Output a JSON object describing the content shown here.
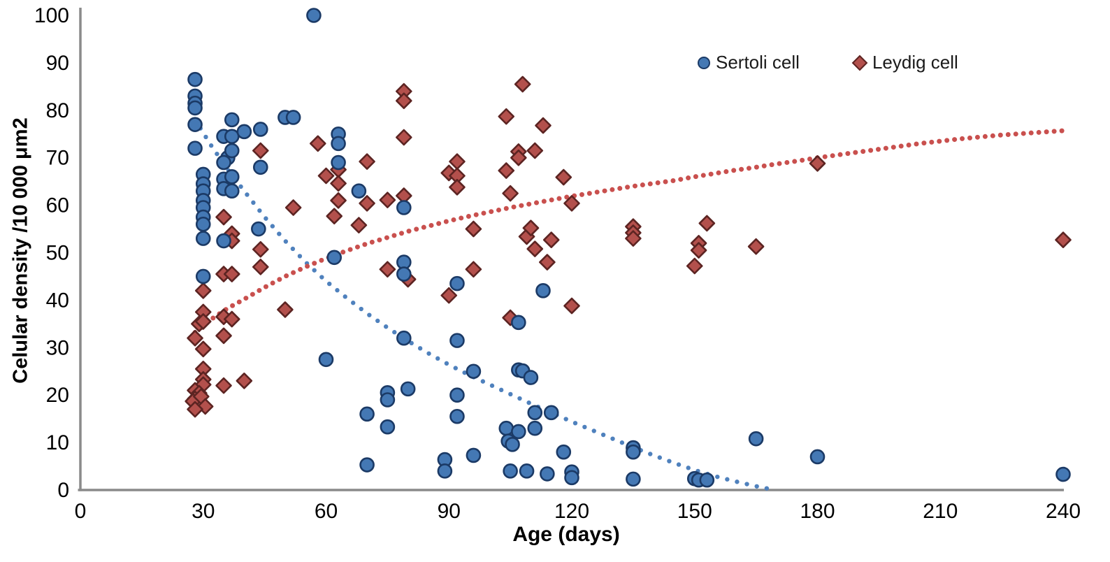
{
  "chart_data": {
    "type": "scatter",
    "title": "",
    "xlabel": "Age (days)",
    "ylabel": "Celular density /10 000 μm2",
    "xlim": [
      0,
      240
    ],
    "ylim": [
      0,
      100
    ],
    "x_ticks": [
      0,
      30,
      60,
      90,
      120,
      150,
      180,
      210,
      240
    ],
    "y_ticks": [
      0,
      10,
      20,
      30,
      40,
      50,
      60,
      70,
      80,
      90,
      100
    ],
    "grid": false,
    "legend_position": "top-right",
    "axis_color": "#8a8a8a",
    "tick_font_color": "#000000",
    "series": [
      {
        "name": "Sertoli cell",
        "marker": "circle",
        "fill": "#4478b4",
        "stroke": "#1b3a66",
        "points": [
          [
            28,
            86.5
          ],
          [
            28,
            83
          ],
          [
            28,
            81.5
          ],
          [
            28,
            80.5
          ],
          [
            28,
            77
          ],
          [
            28,
            72
          ],
          [
            30,
            66.5
          ],
          [
            30,
            64.5
          ],
          [
            30,
            63
          ],
          [
            30,
            61
          ],
          [
            30,
            59.5
          ],
          [
            30,
            57.5
          ],
          [
            30,
            56
          ],
          [
            30,
            53
          ],
          [
            30,
            45
          ],
          [
            35,
            74.5
          ],
          [
            37,
            74.5
          ],
          [
            37,
            78
          ],
          [
            40,
            75.5
          ],
          [
            44,
            76
          ],
          [
            36,
            70
          ],
          [
            35,
            69
          ],
          [
            37,
            71.5
          ],
          [
            35,
            65.5
          ],
          [
            37,
            66
          ],
          [
            35,
            63.5
          ],
          [
            37,
            63
          ],
          [
            44,
            68
          ],
          [
            35,
            52.5
          ],
          [
            43.5,
            55
          ],
          [
            50,
            78.5
          ],
          [
            52,
            78.5
          ],
          [
            57,
            100
          ],
          [
            62,
            49
          ],
          [
            63,
            75
          ],
          [
            63,
            73
          ],
          [
            63,
            69
          ],
          [
            60,
            27.5
          ],
          [
            68,
            63
          ],
          [
            70,
            16
          ],
          [
            70,
            5.3
          ],
          [
            75,
            20.5
          ],
          [
            75,
            19
          ],
          [
            75,
            13.3
          ],
          [
            79,
            59.5
          ],
          [
            79,
            48
          ],
          [
            79,
            45.5
          ],
          [
            79,
            32
          ],
          [
            80,
            21.3
          ],
          [
            92,
            43.5
          ],
          [
            92,
            31.5
          ],
          [
            92,
            20
          ],
          [
            92,
            15.5
          ],
          [
            89,
            6.4
          ],
          [
            89,
            4
          ],
          [
            96,
            25
          ],
          [
            96,
            7.3
          ],
          [
            104,
            13
          ],
          [
            107,
            12.3
          ],
          [
            111,
            13
          ],
          [
            104.5,
            10.3
          ],
          [
            105.5,
            9.6
          ],
          [
            107,
            25.3
          ],
          [
            108,
            25.1
          ],
          [
            110,
            23.7
          ],
          [
            107,
            35.3
          ],
          [
            113,
            42
          ],
          [
            111,
            16.3
          ],
          [
            115,
            16.3
          ],
          [
            105,
            4
          ],
          [
            109,
            4
          ],
          [
            114,
            3.4
          ],
          [
            118,
            8
          ],
          [
            120,
            3.8
          ],
          [
            120,
            2.6
          ],
          [
            135,
            8.9
          ],
          [
            135,
            8
          ],
          [
            135,
            2.3
          ],
          [
            150,
            2.4
          ],
          [
            151,
            2.1
          ],
          [
            153,
            2.1
          ],
          [
            165,
            10.8
          ],
          [
            180,
            7
          ],
          [
            240,
            3.3
          ]
        ]
      },
      {
        "name": "Leydig cell",
        "marker": "diamond",
        "fill": "#b3504c",
        "stroke": "#5c2422",
        "points": [
          [
            28,
            32
          ],
          [
            29,
            35
          ],
          [
            30,
            37.5
          ],
          [
            30,
            35.5
          ],
          [
            30,
            42
          ],
          [
            30,
            29.7
          ],
          [
            30,
            25.5
          ],
          [
            30,
            23.3
          ],
          [
            30,
            22.2
          ],
          [
            28,
            21
          ],
          [
            29,
            20.4
          ],
          [
            28,
            19.2
          ],
          [
            27.5,
            18.7
          ],
          [
            29.5,
            19.7
          ],
          [
            30.5,
            17.6
          ],
          [
            28,
            17
          ],
          [
            35,
            57.5
          ],
          [
            37,
            54
          ],
          [
            37,
            52.5
          ],
          [
            35,
            45.5
          ],
          [
            37,
            45.5
          ],
          [
            35,
            36.5
          ],
          [
            37,
            36
          ],
          [
            35,
            32.5
          ],
          [
            35,
            22
          ],
          [
            40,
            23
          ],
          [
            44,
            71.5
          ],
          [
            44,
            50.7
          ],
          [
            44,
            47
          ],
          [
            50,
            38
          ],
          [
            52,
            59.5
          ],
          [
            58,
            73
          ],
          [
            60,
            66.2
          ],
          [
            63,
            67.5
          ],
          [
            63,
            64.6
          ],
          [
            63,
            61
          ],
          [
            62,
            57.7
          ],
          [
            68,
            55.8
          ],
          [
            70,
            69.2
          ],
          [
            70,
            60.4
          ],
          [
            75,
            61.1
          ],
          [
            75,
            46.5
          ],
          [
            79,
            84
          ],
          [
            79,
            82
          ],
          [
            79,
            74.3
          ],
          [
            79,
            62
          ],
          [
            80,
            44.4
          ],
          [
            90,
            66.8
          ],
          [
            92,
            69.2
          ],
          [
            92,
            66.2
          ],
          [
            92,
            63.8
          ],
          [
            90,
            41
          ],
          [
            96,
            55
          ],
          [
            96,
            46.5
          ],
          [
            104,
            78.7
          ],
          [
            104,
            67.3
          ],
          [
            105,
            62.5
          ],
          [
            105,
            36.3
          ],
          [
            107,
            71.3
          ],
          [
            107,
            70
          ],
          [
            108,
            85.5
          ],
          [
            109,
            53.4
          ],
          [
            110,
            55.2
          ],
          [
            111,
            71.5
          ],
          [
            111,
            50.8
          ],
          [
            113,
            76.8
          ],
          [
            114,
            48
          ],
          [
            115,
            52.7
          ],
          [
            118,
            65.9
          ],
          [
            120,
            60.4
          ],
          [
            120,
            38.8
          ],
          [
            135,
            55.5
          ],
          [
            135,
            54.2
          ],
          [
            135,
            53
          ],
          [
            150,
            47.2
          ],
          [
            151,
            52
          ],
          [
            151,
            50.5
          ],
          [
            153,
            56.2
          ],
          [
            165,
            51.3
          ],
          [
            180,
            68.8
          ],
          [
            240,
            52.7
          ]
        ]
      }
    ],
    "trendlines": [
      {
        "series": "Sertoli cell",
        "style": "dotted",
        "color": "#4f81bd",
        "dot_radius": 3.2,
        "dot_spacing": 14.5,
        "points": [
          [
            28,
            78
          ],
          [
            32,
            72.5
          ],
          [
            36,
            67.5
          ],
          [
            40,
            63
          ],
          [
            45,
            57.5
          ],
          [
            50,
            52.5
          ],
          [
            55,
            48
          ],
          [
            60,
            44
          ],
          [
            65,
            40.5
          ],
          [
            70,
            37.2
          ],
          [
            75,
            34.2
          ],
          [
            80,
            31.4
          ],
          [
            85,
            28.8
          ],
          [
            90,
            26.4
          ],
          [
            95,
            24.2
          ],
          [
            100,
            22.2
          ],
          [
            105,
            20.2
          ],
          [
            110,
            18.2
          ],
          [
            115,
            16.3
          ],
          [
            120,
            14.4
          ],
          [
            125,
            12.6
          ],
          [
            130,
            10.8
          ],
          [
            135,
            9
          ],
          [
            140,
            7.3
          ],
          [
            145,
            5.7
          ],
          [
            150,
            4.2
          ],
          [
            155,
            2.9
          ],
          [
            160,
            1.8
          ],
          [
            165,
            0.8
          ],
          [
            169,
            0.1
          ]
        ]
      },
      {
        "series": "Leydig cell",
        "style": "dotted",
        "color": "#c9504e",
        "dot_radius": 3.5,
        "dot_spacing": 11,
        "points": [
          [
            28,
            33.2
          ],
          [
            32,
            36
          ],
          [
            36,
            38.3
          ],
          [
            40,
            40.2
          ],
          [
            45,
            42.7
          ],
          [
            50,
            45
          ],
          [
            55,
            47
          ],
          [
            60,
            48.8
          ],
          [
            65,
            50.4
          ],
          [
            70,
            51.9
          ],
          [
            75,
            53.2
          ],
          [
            80,
            54.5
          ],
          [
            85,
            55.6
          ],
          [
            90,
            56.7
          ],
          [
            95,
            57.7
          ],
          [
            100,
            58.6
          ],
          [
            105,
            59.5
          ],
          [
            110,
            60.3
          ],
          [
            115,
            61.1
          ],
          [
            120,
            61.9
          ],
          [
            125,
            62.6
          ],
          [
            130,
            63.3
          ],
          [
            135,
            64
          ],
          [
            140,
            64.6
          ],
          [
            145,
            65.2
          ],
          [
            150,
            66
          ],
          [
            155,
            66.7
          ],
          [
            160,
            67.4
          ],
          [
            165,
            68
          ],
          [
            170,
            68.7
          ],
          [
            175,
            69.3
          ],
          [
            180,
            70
          ],
          [
            185,
            70.6
          ],
          [
            190,
            71.2
          ],
          [
            195,
            71.8
          ],
          [
            200,
            72.4
          ],
          [
            205,
            73
          ],
          [
            210,
            73.5
          ],
          [
            215,
            74
          ],
          [
            220,
            74.4
          ],
          [
            225,
            74.8
          ],
          [
            230,
            75.1
          ],
          [
            235,
            75.4
          ],
          [
            240,
            75.7
          ]
        ]
      }
    ]
  },
  "legend": {
    "items": [
      {
        "label": "Sertoli cell",
        "marker": "circle"
      },
      {
        "label": "Leydig cell",
        "marker": "diamond"
      }
    ]
  },
  "axes": {
    "x_title": "Age (days)",
    "y_title": "Celular density /10 000 μm2"
  }
}
